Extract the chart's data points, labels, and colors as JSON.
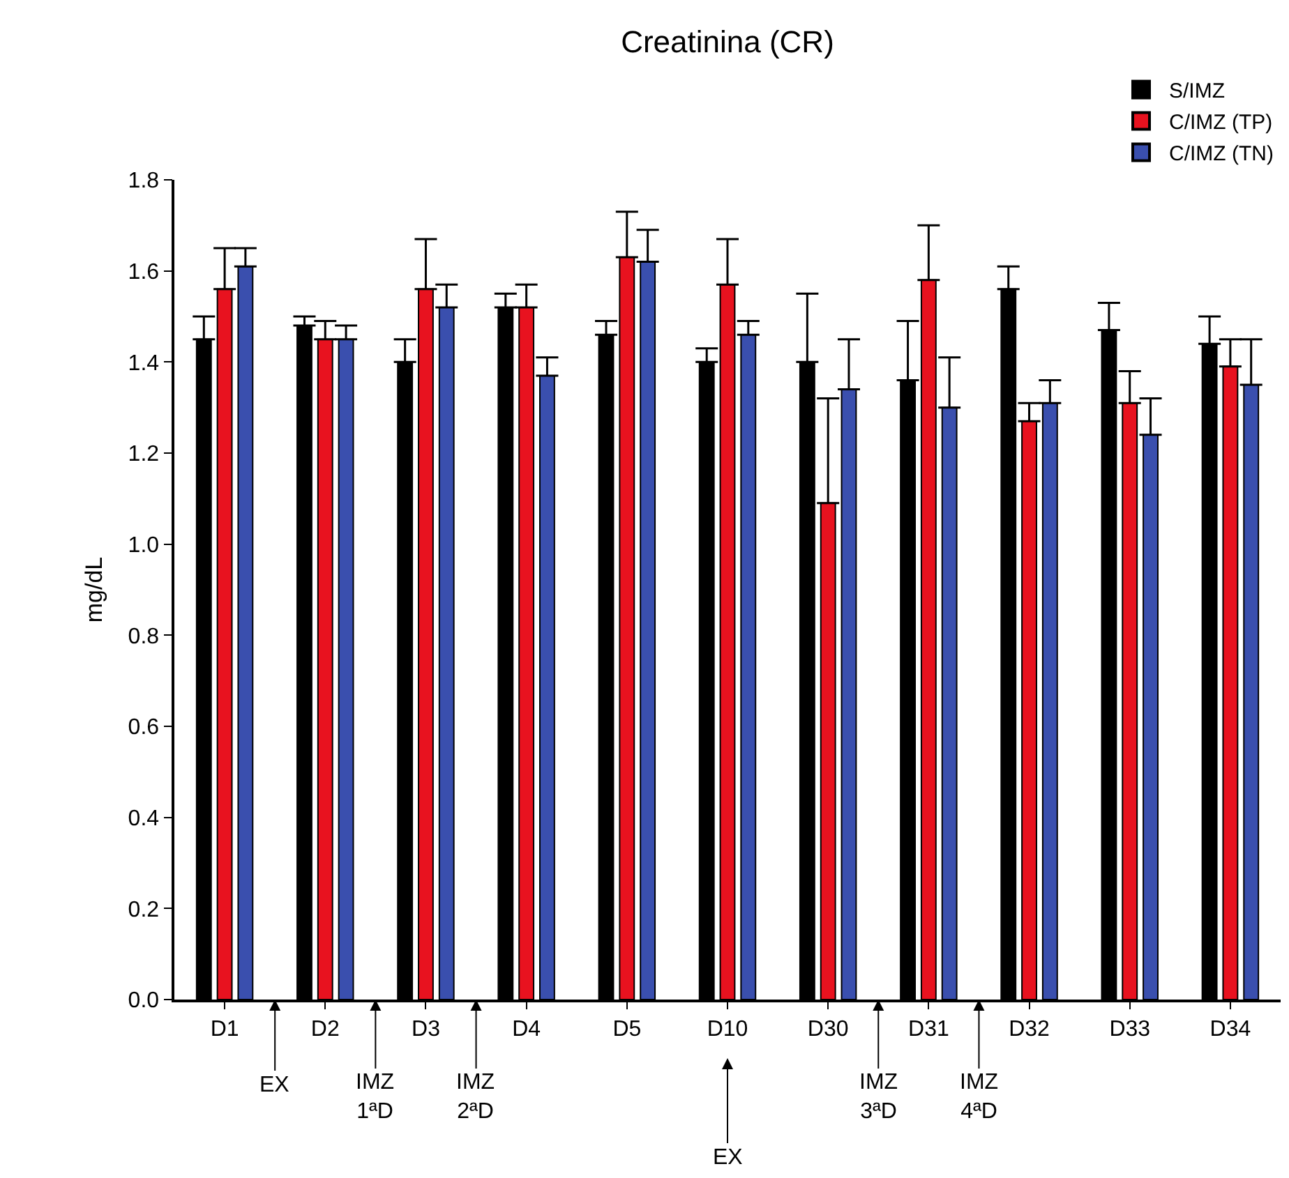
{
  "chart_data": {
    "type": "bar",
    "title": "Creatinina (CR)",
    "ylabel": "mg/dL",
    "categories": [
      "D1",
      "D2",
      "D3",
      "D4",
      "D5",
      "D10",
      "D30",
      "D31",
      "D32",
      "D33",
      "D34"
    ],
    "series": [
      {
        "name": "S/IMZ",
        "color": "#000000",
        "values": [
          1.45,
          1.48,
          1.4,
          1.52,
          1.46,
          1.4,
          1.4,
          1.36,
          1.56,
          1.47,
          1.44
        ],
        "errors": [
          [
            1.45,
            1.5
          ],
          [
            1.48,
            1.5
          ],
          [
            1.4,
            1.45
          ],
          [
            1.52,
            1.55
          ],
          [
            1.46,
            1.49
          ],
          [
            1.4,
            1.43
          ],
          [
            1.4,
            1.55
          ],
          [
            1.36,
            1.49
          ],
          [
            1.56,
            1.61
          ],
          [
            1.47,
            1.53
          ],
          [
            1.44,
            1.5
          ]
        ]
      },
      {
        "name": "C/IMZ (TP)",
        "color": "#e8121f",
        "values": [
          1.56,
          1.45,
          1.56,
          1.52,
          1.63,
          1.57,
          1.09,
          1.58,
          1.27,
          1.31,
          1.39
        ],
        "errors": [
          [
            1.56,
            1.65
          ],
          [
            1.45,
            1.49
          ],
          [
            1.56,
            1.67
          ],
          [
            1.52,
            1.57
          ],
          [
            1.63,
            1.73
          ],
          [
            1.57,
            1.67
          ],
          [
            1.09,
            1.32
          ],
          [
            1.58,
            1.7
          ],
          [
            1.27,
            1.31
          ],
          [
            1.31,
            1.38
          ],
          [
            1.39,
            1.45
          ]
        ]
      },
      {
        "name": "C/IMZ (TN)",
        "color": "#3a4fae",
        "values": [
          1.61,
          1.45,
          1.52,
          1.37,
          1.62,
          1.46,
          1.34,
          1.3,
          1.31,
          1.24,
          1.35
        ],
        "errors": [
          [
            1.61,
            1.65
          ],
          [
            1.45,
            1.48
          ],
          [
            1.52,
            1.57
          ],
          [
            1.37,
            1.41
          ],
          [
            1.62,
            1.69
          ],
          [
            1.46,
            1.49
          ],
          [
            1.34,
            1.45
          ],
          [
            1.3,
            1.41
          ],
          [
            1.31,
            1.36
          ],
          [
            1.24,
            1.32
          ],
          [
            1.35,
            1.45
          ]
        ]
      }
    ],
    "ylim": [
      0,
      1.8
    ],
    "yticks": [
      {
        "value": 0,
        "label": "0.0"
      },
      0.2,
      0.4,
      0.6,
      0.8,
      {
        "value": 1,
        "label": "1.0"
      },
      1.2,
      1.4,
      1.6,
      1.8
    ],
    "annotations": [
      "EX",
      "IMZ\n1ªD",
      "IMZ\n2ªD",
      "EX",
      "IMZ\n3ªD",
      "IMZ\n4ªD"
    ],
    "legend": "top right"
  }
}
